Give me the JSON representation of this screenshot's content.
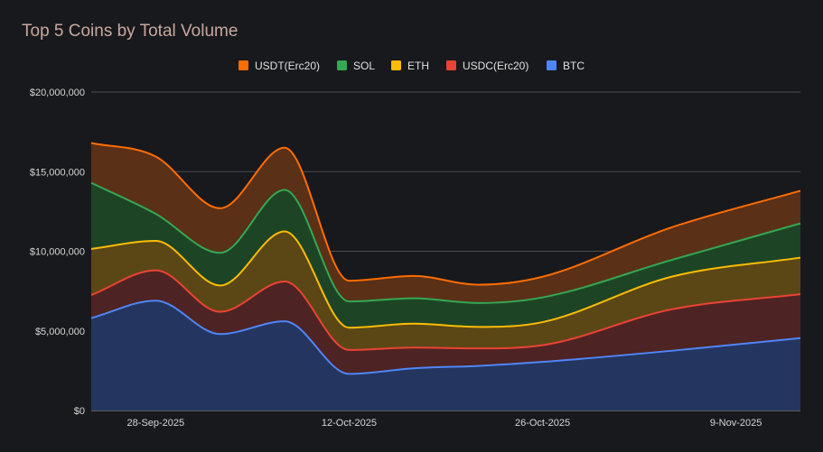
{
  "chart_data": {
    "type": "area",
    "stacked": true,
    "title": "Top 5 Coins by Total Volume",
    "xlabel": "",
    "ylabel": "",
    "ylim": [
      0,
      20000000
    ],
    "y_ticks": [
      0,
      5000000,
      10000000,
      15000000,
      20000000
    ],
    "y_tick_labels": [
      "$0",
      "$5,000,000",
      "$10,000,000",
      "$15,000,000",
      "$20,000,000"
    ],
    "x_tick_labels": [
      "28-Sep-2025",
      "12-Oct-2025",
      "26-Oct-2025",
      "9-Nov-2025"
    ],
    "x_tick_positions": [
      1,
      4,
      7,
      10
    ],
    "x_count": 12,
    "legend_position": "top",
    "grid": true,
    "legend": [
      "USDT(Erc20)",
      "SOL",
      "ETH",
      "USDC(Erc20)",
      "BTC"
    ],
    "series": [
      {
        "name": "BTC",
        "color": "#4f86f7",
        "fill": "#24355f",
        "values": [
          5800000,
          6900000,
          4800000,
          5600000,
          2300000,
          2650000,
          2800000,
          3050000,
          3750000,
          4550000
        ]
      },
      {
        "name": "USDC(Erc20)",
        "color": "#ea4335",
        "fill": "#4e2323",
        "values": [
          1450000,
          1900000,
          1400000,
          2500000,
          1500000,
          1300000,
          1100000,
          1050000,
          2600000,
          2750000
        ]
      },
      {
        "name": "ETH",
        "color": "#fbbc05",
        "fill": "#5b4716",
        "values": [
          2900000,
          1850000,
          1650000,
          3150000,
          1400000,
          1500000,
          1350000,
          1450000,
          2050000,
          2300000
        ]
      },
      {
        "name": "SOL",
        "color": "#34a853",
        "fill": "#1e4426",
        "values": [
          4150000,
          1700000,
          2050000,
          2600000,
          1650000,
          1600000,
          1500000,
          1550000,
          1050000,
          2150000
        ]
      },
      {
        "name": "USDT(Erc20)",
        "color": "#ff6d01",
        "fill": "#5a3017",
        "values": [
          2500000,
          3600000,
          2800000,
          2650000,
          1300000,
          1400000,
          1150000,
          1300000,
          2050000,
          2050000
        ]
      }
    ],
    "x_positions": [
      0,
      1,
      2,
      3,
      4,
      5,
      6,
      7,
      9,
      11
    ]
  }
}
